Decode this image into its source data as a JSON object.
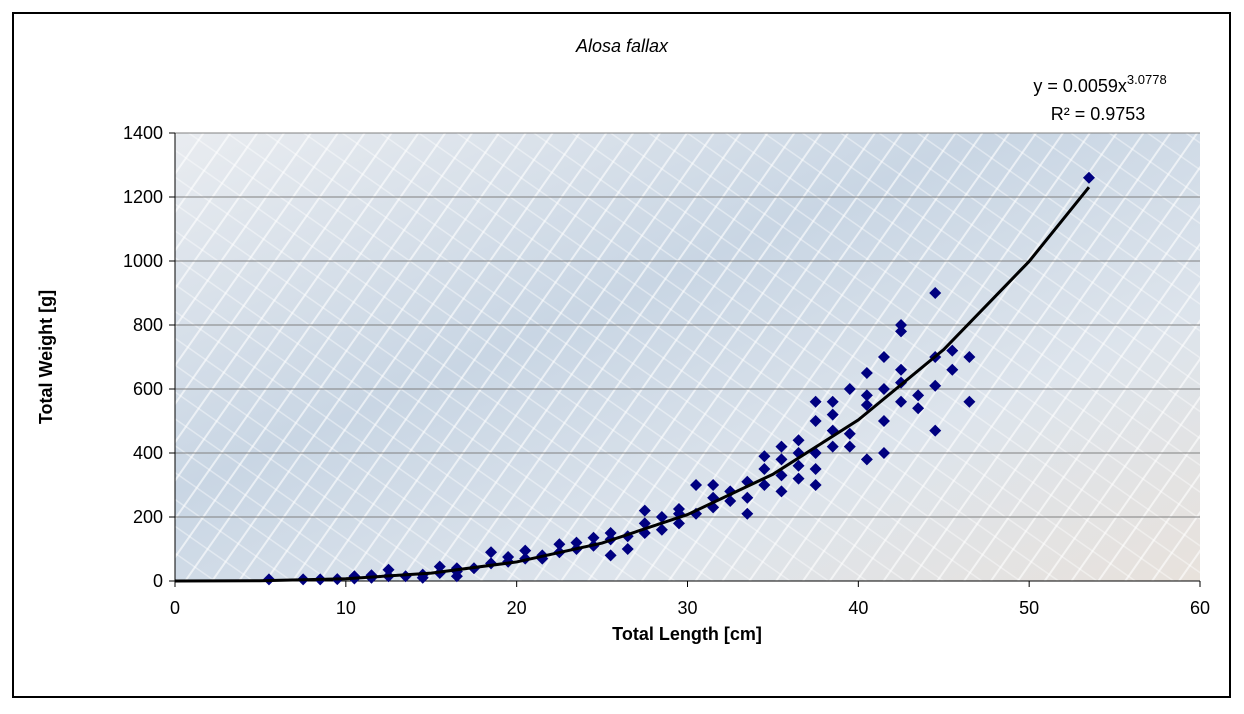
{
  "chart_data": {
    "type": "scatter",
    "title": "Alosa fallax",
    "x_label": "Total Length [cm]",
    "y_label": "Total Weight [g]",
    "equation": "y = 0.0059x",
    "exponent": "3.0778",
    "r_squared": "R² = 0.9753",
    "xlim": [
      0,
      60
    ],
    "xticks": [
      0,
      10,
      20,
      30,
      40,
      50,
      60
    ],
    "ylim": [
      0,
      1400
    ],
    "yticks": [
      0,
      200,
      400,
      600,
      800,
      1000,
      1200,
      1400
    ],
    "grid": true,
    "series": [
      {
        "color": "#000080",
        "x": [
          5.5,
          7.5,
          8.5,
          9.5,
          10.5,
          10.5,
          11.5,
          11.5,
          12.5,
          12.5,
          13.5,
          14.5,
          14.5,
          15.5,
          15.5,
          16.5,
          16.5,
          16.5,
          17.5,
          18.5,
          18.5,
          19.5,
          19.5,
          20.5,
          20.5,
          21.5,
          21.5,
          22.5,
          22.5,
          23.5,
          23.5,
          24.5,
          24.5,
          25.5,
          25.5,
          25.5,
          26.5,
          26.5,
          27.5,
          27.5,
          27.5,
          28.5,
          28.5,
          29.5,
          29.5,
          29.5,
          30.5,
          30.5,
          31.5,
          31.5,
          31.5,
          32.5,
          32.5,
          33.5,
          33.5,
          33.5,
          34.5,
          34.5,
          34.5,
          35.5,
          35.5,
          35.5,
          35.5,
          36.5,
          36.5,
          36.5,
          36.5,
          37.5,
          37.5,
          37.5,
          37.5,
          37.5,
          38.5,
          38.5,
          38.5,
          38.5,
          39.5,
          39.5,
          39.5,
          40.5,
          40.5,
          40.5,
          40.5,
          41.5,
          41.5,
          41.5,
          41.5,
          42.5,
          42.5,
          42.5,
          42.5,
          42.5,
          43.5,
          43.5,
          44.5,
          44.5,
          44.5,
          44.5,
          45.5,
          45.5,
          46.5,
          46.5,
          53.5
        ],
        "y": [
          5,
          5,
          5,
          6,
          8,
          15,
          10,
          18,
          15,
          35,
          15,
          20,
          10,
          25,
          45,
          30,
          15,
          40,
          40,
          55,
          90,
          60,
          75,
          70,
          95,
          70,
          80,
          90,
          115,
          100,
          120,
          110,
          135,
          80,
          130,
          150,
          100,
          140,
          150,
          180,
          220,
          160,
          200,
          180,
          210,
          225,
          210,
          300,
          230,
          260,
          300,
          250,
          280,
          210,
          260,
          310,
          300,
          350,
          390,
          280,
          330,
          380,
          420,
          320,
          360,
          400,
          440,
          300,
          350,
          400,
          500,
          560,
          420,
          470,
          520,
          560,
          420,
          460,
          600,
          380,
          550,
          580,
          650,
          400,
          500,
          600,
          700,
          560,
          620,
          660,
          780,
          800,
          540,
          580,
          470,
          610,
          700,
          900,
          660,
          720,
          560,
          700,
          1260
        ]
      }
    ],
    "trendline": {
      "color": "#000000",
      "x": [
        0,
        5,
        10,
        15,
        20,
        25,
        30,
        35,
        40,
        45,
        50,
        53.5
      ],
      "y": [
        0,
        0.84,
        7.06,
        24.6,
        59.6,
        118.5,
        207.5,
        333.5,
        503.4,
        723.4,
        998.9,
        1230.7
      ]
    }
  }
}
